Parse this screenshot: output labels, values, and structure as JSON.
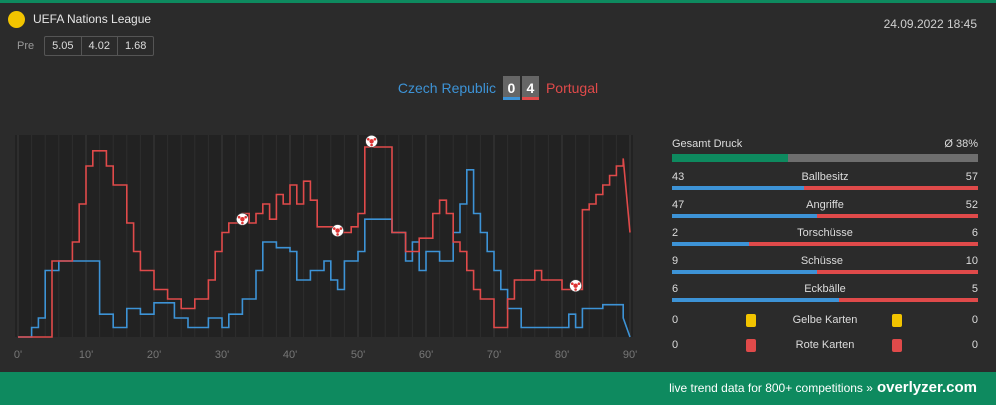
{
  "header": {
    "league": "UEFA Nations League",
    "pre_label": "Pre",
    "odds": [
      "5.05",
      "4.02",
      "1.68"
    ],
    "datetime": "24.09.2022 18:45"
  },
  "match": {
    "home": "Czech Republic",
    "away": "Portugal",
    "home_score": "0",
    "away_score": "4"
  },
  "colors": {
    "home": "#3d93d6",
    "away": "#e04a4a",
    "brand": "#0e8a5f",
    "yellow": "#f2c400",
    "red": "#e04a4a"
  },
  "stats": {
    "pressure_label": "Gesamt Druck",
    "pressure_value": "Ø 38%",
    "pressure_fraction": 0.38,
    "rows": [
      {
        "label": "Ballbesitz",
        "home": "43",
        "away": "57"
      },
      {
        "label": "Angriffe",
        "home": "47",
        "away": "52"
      },
      {
        "label": "Torschüsse",
        "home": "2",
        "away": "6"
      },
      {
        "label": "Schüsse",
        "home": "9",
        "away": "10"
      },
      {
        "label": "Eckbälle",
        "home": "6",
        "away": "5"
      }
    ],
    "cards": [
      {
        "label": "Gelbe Karten",
        "home": "0",
        "away": "0",
        "icon": "yellow-card-icon"
      },
      {
        "label": "Rote Karten",
        "home": "0",
        "away": "0",
        "icon": "red-card-icon"
      }
    ]
  },
  "chart_data": {
    "type": "line",
    "x_ticks": [
      "0'",
      "10'",
      "20'",
      "30'",
      "40'",
      "50'",
      "60'",
      "70'",
      "80'",
      "90'"
    ],
    "xlim": [
      0,
      90
    ],
    "ylim": [
      0,
      100
    ],
    "series": [
      {
        "name": "Czech Republic",
        "points": [
          [
            0,
            0
          ],
          [
            2,
            0
          ],
          [
            2,
            5
          ],
          [
            3,
            5
          ],
          [
            3,
            10
          ],
          [
            4,
            10
          ],
          [
            4,
            35
          ],
          [
            6,
            35
          ],
          [
            6,
            40
          ],
          [
            12,
            40
          ],
          [
            12,
            12
          ],
          [
            14,
            12
          ],
          [
            14,
            5
          ],
          [
            16,
            5
          ],
          [
            16,
            15
          ],
          [
            18,
            15
          ],
          [
            18,
            12
          ],
          [
            20,
            12
          ],
          [
            20,
            18
          ],
          [
            23,
            18
          ],
          [
            23,
            10
          ],
          [
            25,
            10
          ],
          [
            25,
            5
          ],
          [
            28,
            5
          ],
          [
            28,
            10
          ],
          [
            30,
            10
          ],
          [
            30,
            5
          ],
          [
            31,
            5
          ],
          [
            31,
            12
          ],
          [
            33,
            12
          ],
          [
            33,
            20
          ],
          [
            35,
            20
          ],
          [
            35,
            35
          ],
          [
            36,
            35
          ],
          [
            36,
            50
          ],
          [
            38,
            50
          ],
          [
            38,
            47
          ],
          [
            40,
            47
          ],
          [
            40,
            45
          ],
          [
            41,
            45
          ],
          [
            41,
            30
          ],
          [
            43,
            30
          ],
          [
            43,
            35
          ],
          [
            45,
            35
          ],
          [
            45,
            40
          ],
          [
            46,
            40
          ],
          [
            46,
            30
          ],
          [
            47,
            30
          ],
          [
            47,
            25
          ],
          [
            48,
            25
          ],
          [
            48,
            40
          ],
          [
            50,
            40
          ],
          [
            50,
            45
          ],
          [
            51,
            45
          ],
          [
            51,
            62
          ],
          [
            55,
            62
          ],
          [
            55,
            55
          ],
          [
            57,
            55
          ],
          [
            57,
            40
          ],
          [
            58,
            40
          ],
          [
            58,
            50
          ],
          [
            59,
            50
          ],
          [
            59,
            35
          ],
          [
            60,
            35
          ],
          [
            60,
            45
          ],
          [
            62,
            45
          ],
          [
            62,
            40
          ],
          [
            64,
            40
          ],
          [
            64,
            55
          ],
          [
            65,
            55
          ],
          [
            65,
            70
          ],
          [
            66,
            70
          ],
          [
            66,
            88
          ],
          [
            67,
            88
          ],
          [
            67,
            65
          ],
          [
            68,
            65
          ],
          [
            68,
            55
          ],
          [
            69,
            55
          ],
          [
            69,
            45
          ],
          [
            70,
            45
          ],
          [
            70,
            35
          ],
          [
            71,
            35
          ],
          [
            71,
            25
          ],
          [
            72,
            25
          ],
          [
            72,
            15
          ],
          [
            74,
            15
          ],
          [
            74,
            5
          ],
          [
            81,
            5
          ],
          [
            81,
            12
          ],
          [
            82,
            12
          ],
          [
            82,
            5
          ],
          [
            83,
            5
          ],
          [
            83,
            15
          ],
          [
            86,
            15
          ],
          [
            86,
            17
          ],
          [
            89,
            17
          ],
          [
            89,
            10
          ],
          [
            90,
            0
          ]
        ]
      },
      {
        "name": "Portugal",
        "points": [
          [
            0,
            0
          ],
          [
            5,
            0
          ],
          [
            5,
            40
          ],
          [
            8,
            40
          ],
          [
            8,
            50
          ],
          [
            9,
            50
          ],
          [
            9,
            70
          ],
          [
            10,
            70
          ],
          [
            10,
            90
          ],
          [
            11,
            90
          ],
          [
            11,
            98
          ],
          [
            13,
            98
          ],
          [
            13,
            90
          ],
          [
            14,
            90
          ],
          [
            14,
            80
          ],
          [
            16,
            80
          ],
          [
            16,
            60
          ],
          [
            17,
            60
          ],
          [
            17,
            45
          ],
          [
            18,
            45
          ],
          [
            18,
            35
          ],
          [
            20,
            35
          ],
          [
            20,
            25
          ],
          [
            22,
            25
          ],
          [
            22,
            20
          ],
          [
            24,
            20
          ],
          [
            24,
            15
          ],
          [
            26,
            15
          ],
          [
            26,
            20
          ],
          [
            28,
            20
          ],
          [
            28,
            30
          ],
          [
            29,
            30
          ],
          [
            29,
            45
          ],
          [
            30,
            45
          ],
          [
            30,
            55
          ],
          [
            31,
            55
          ],
          [
            31,
            60
          ],
          [
            33,
            60
          ],
          [
            33,
            65
          ],
          [
            34,
            65
          ],
          [
            34,
            60
          ],
          [
            35,
            60
          ],
          [
            35,
            65
          ],
          [
            36,
            65
          ],
          [
            36,
            70
          ],
          [
            37,
            70
          ],
          [
            37,
            62
          ],
          [
            38,
            62
          ],
          [
            38,
            75
          ],
          [
            39,
            75
          ],
          [
            39,
            70
          ],
          [
            40,
            70
          ],
          [
            40,
            80
          ],
          [
            41,
            80
          ],
          [
            41,
            70
          ],
          [
            42,
            70
          ],
          [
            42,
            82
          ],
          [
            43,
            82
          ],
          [
            43,
            72
          ],
          [
            44,
            72
          ],
          [
            44,
            58
          ],
          [
            47,
            58
          ],
          [
            47,
            55
          ],
          [
            49,
            55
          ],
          [
            49,
            58
          ],
          [
            50,
            58
          ],
          [
            50,
            65
          ],
          [
            51,
            65
          ],
          [
            51,
            100
          ],
          [
            55,
            100
          ],
          [
            55,
            55
          ],
          [
            57,
            55
          ],
          [
            57,
            45
          ],
          [
            59,
            45
          ],
          [
            59,
            52
          ],
          [
            61,
            52
          ],
          [
            61,
            65
          ],
          [
            62,
            65
          ],
          [
            62,
            72
          ],
          [
            63,
            72
          ],
          [
            63,
            65
          ],
          [
            64,
            65
          ],
          [
            64,
            50
          ],
          [
            65,
            50
          ],
          [
            65,
            45
          ],
          [
            66,
            45
          ],
          [
            66,
            35
          ],
          [
            67,
            35
          ],
          [
            67,
            25
          ],
          [
            68,
            25
          ],
          [
            68,
            20
          ],
          [
            70,
            20
          ],
          [
            70,
            5
          ],
          [
            72,
            5
          ],
          [
            72,
            20
          ],
          [
            73,
            20
          ],
          [
            73,
            30
          ],
          [
            76,
            30
          ],
          [
            76,
            35
          ],
          [
            77,
            35
          ],
          [
            77,
            30
          ],
          [
            80,
            30
          ],
          [
            80,
            25
          ],
          [
            83,
            25
          ],
          [
            83,
            67
          ],
          [
            84,
            67
          ],
          [
            84,
            70
          ],
          [
            85,
            70
          ],
          [
            85,
            75
          ],
          [
            86,
            75
          ],
          [
            86,
            80
          ],
          [
            87,
            80
          ],
          [
            87,
            85
          ],
          [
            88,
            85
          ],
          [
            88,
            90
          ],
          [
            89,
            90
          ],
          [
            89,
            94
          ],
          [
            90,
            55
          ]
        ]
      }
    ],
    "goals": [
      {
        "minute": 33,
        "level": 62
      },
      {
        "minute": 47,
        "level": 56
      },
      {
        "minute": 52,
        "level": 103
      },
      {
        "minute": 82,
        "level": 27
      }
    ]
  },
  "footer": {
    "tagline": "live trend data for 800+ competitions »",
    "brand": "overlyzer.com"
  }
}
